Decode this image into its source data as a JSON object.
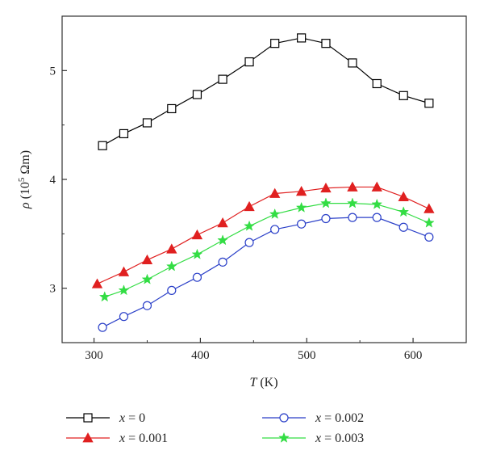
{
  "chart_data": {
    "type": "line",
    "xlabel_var": "T",
    "xlabel_unit": "(K)",
    "ylabel_var": "ρ",
    "ylabel_unit_pre": "(10",
    "ylabel_exp": "5",
    "ylabel_unit_post": " Ωm)",
    "xlim": [
      270,
      650
    ],
    "ylim": [
      2.5,
      5.5
    ],
    "xticks": [
      300,
      400,
      500,
      600
    ],
    "yticks": [
      3,
      4,
      5
    ],
    "x_ticklabels": [
      "300",
      "400",
      "500",
      "600"
    ],
    "y_ticklabels": [
      "3",
      "4",
      "5"
    ],
    "grid": false,
    "legend_position": "bottom",
    "series": [
      {
        "name": "x = 0",
        "legend_var": "x",
        "legend_val": " = 0",
        "marker": "open-square",
        "color": "#000000",
        "x": [
          308,
          328,
          350,
          373,
          397,
          421,
          446,
          470,
          495,
          518,
          543,
          566,
          591,
          615
        ],
        "y": [
          4.31,
          4.42,
          4.52,
          4.65,
          4.78,
          4.92,
          5.08,
          5.25,
          5.3,
          5.25,
          5.07,
          4.88,
          4.77,
          4.7
        ]
      },
      {
        "name": "x = 0.001",
        "legend_var": "x",
        "legend_val": " = 0.001",
        "marker": "filled-triangle",
        "color": "#e02020",
        "x": [
          303,
          328,
          350,
          373,
          397,
          421,
          446,
          470,
          495,
          518,
          543,
          566,
          591,
          615
        ],
        "y": [
          3.04,
          3.15,
          3.26,
          3.36,
          3.49,
          3.6,
          3.75,
          3.87,
          3.89,
          3.92,
          3.93,
          3.93,
          3.84,
          3.73
        ]
      },
      {
        "name": "x = 0.002",
        "legend_var": "x",
        "legend_val": " = 0.002",
        "marker": "open-circle",
        "color": "#2a3fc8",
        "x": [
          308,
          328,
          350,
          373,
          397,
          421,
          446,
          470,
          495,
          518,
          543,
          566,
          591,
          615
        ],
        "y": [
          2.64,
          2.74,
          2.84,
          2.98,
          3.1,
          3.24,
          3.42,
          3.54,
          3.59,
          3.64,
          3.65,
          3.65,
          3.56,
          3.47
        ]
      },
      {
        "name": "x = 0.003",
        "legend_var": "x",
        "legend_val": " = 0.003",
        "marker": "filled-star",
        "color": "#33dd44",
        "x": [
          310,
          328,
          350,
          373,
          397,
          421,
          446,
          470,
          495,
          518,
          543,
          566,
          591,
          615
        ],
        "y": [
          2.92,
          2.98,
          3.08,
          3.2,
          3.31,
          3.44,
          3.57,
          3.68,
          3.74,
          3.78,
          3.78,
          3.77,
          3.7,
          3.6
        ]
      }
    ]
  }
}
